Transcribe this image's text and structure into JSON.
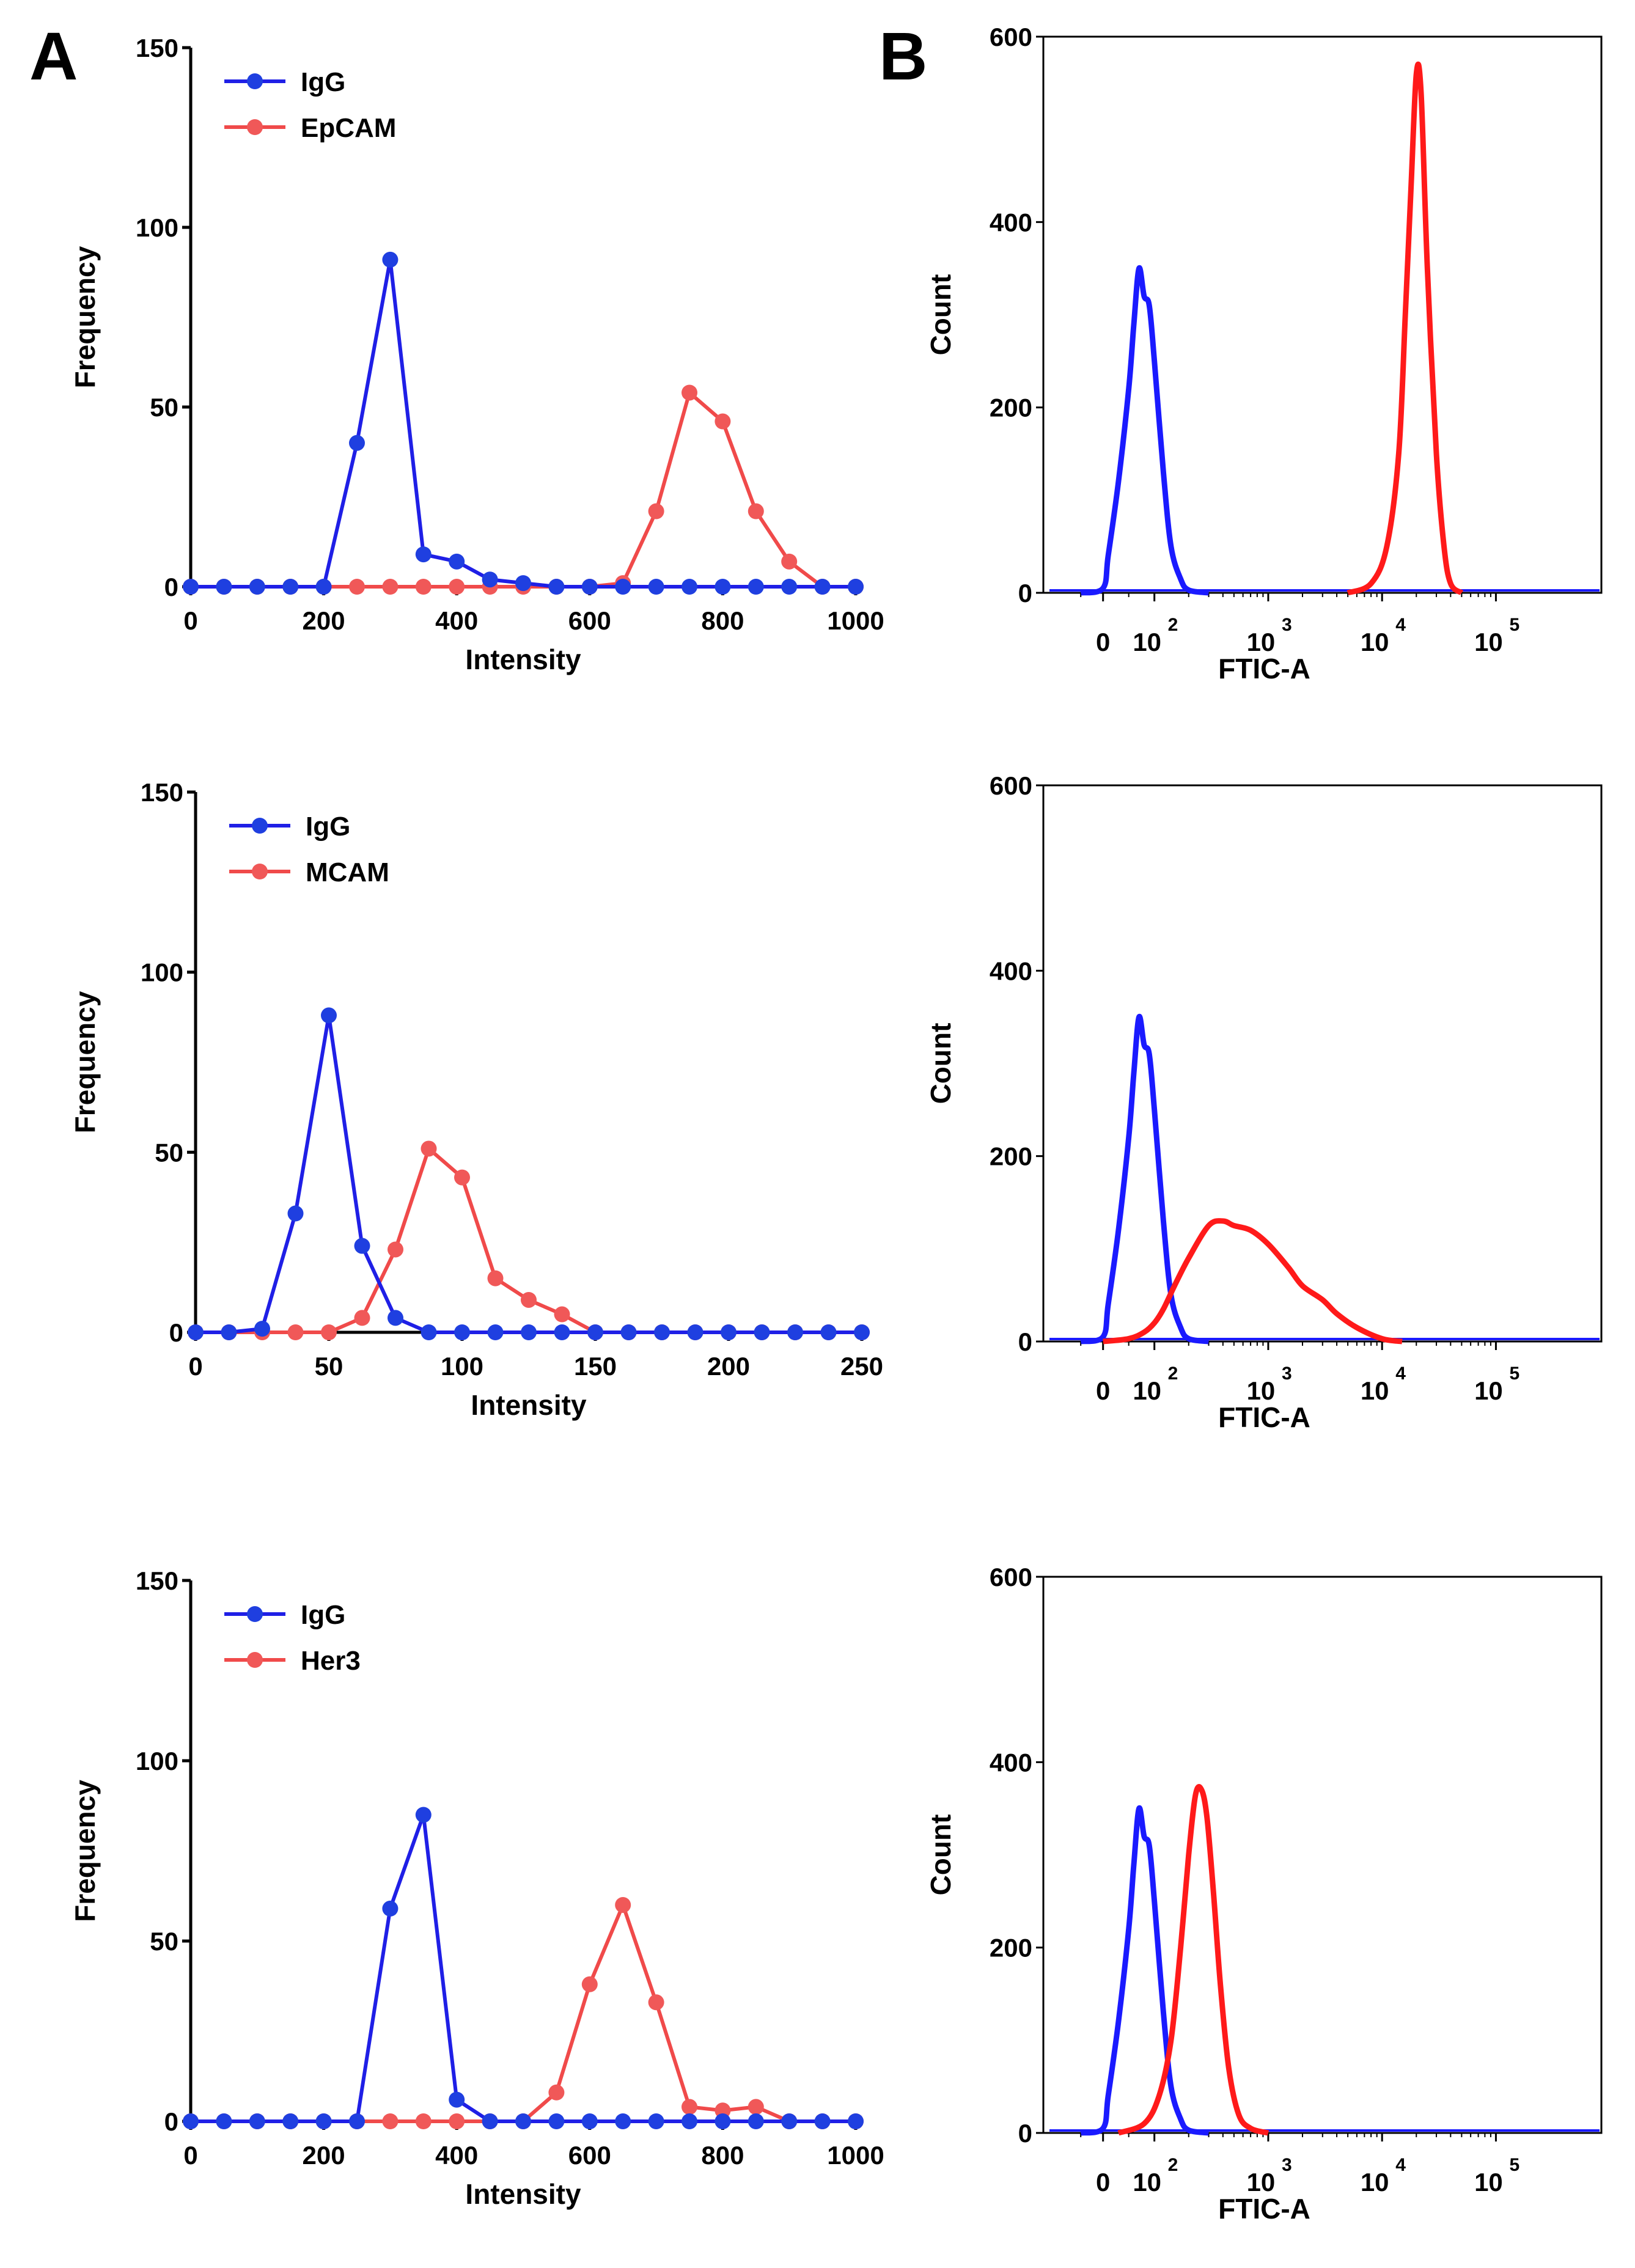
{
  "figure": {
    "panel_a_label": "A",
    "panel_b_label": "B"
  },
  "colors": {
    "igg_line": "#1f1fe6",
    "igg_marker": "#1f3fe0",
    "marker_line": "#f04a4a",
    "marker_dot": "#f05858",
    "facs_igg": "#1a1aff",
    "facs_marker": "#ff1a1a"
  },
  "chart_data": [
    {
      "id": "A1",
      "type": "line",
      "xlabel": "Intensity",
      "ylabel": "Frequency",
      "xlim": [
        0,
        1000
      ],
      "ylim": [
        0,
        150
      ],
      "xticks": [
        0,
        200,
        400,
        600,
        800,
        1000
      ],
      "yticks": [
        0,
        50,
        100,
        150
      ],
      "legend": "top-left",
      "series": [
        {
          "name": "IgG",
          "color": "#1f1fe6",
          "x": [
            0,
            50,
            100,
            150,
            200,
            250,
            300,
            350,
            400,
            450,
            500,
            550,
            600,
            650,
            700,
            750,
            800,
            850,
            900,
            950,
            1000
          ],
          "y": [
            0,
            0,
            0,
            0,
            0,
            40,
            91,
            9,
            7,
            2,
            1,
            0,
            0,
            0,
            0,
            0,
            0,
            0,
            0,
            0,
            0
          ]
        },
        {
          "name": "EpCAM",
          "color": "#f04a4a",
          "x": [
            0,
            50,
            100,
            150,
            200,
            250,
            300,
            350,
            400,
            450,
            500,
            550,
            600,
            650,
            700,
            750,
            800,
            850,
            900,
            950,
            1000
          ],
          "y": [
            0,
            0,
            0,
            0,
            0,
            0,
            0,
            0,
            0,
            0,
            0,
            0,
            0,
            1,
            21,
            54,
            46,
            21,
            7,
            0,
            0
          ]
        }
      ]
    },
    {
      "id": "A2",
      "type": "line",
      "xlabel": "Intensity",
      "ylabel": "Frequency",
      "xlim": [
        0,
        250
      ],
      "ylim": [
        0,
        150
      ],
      "xticks": [
        0,
        50,
        100,
        150,
        200,
        250
      ],
      "yticks": [
        0,
        50,
        100,
        150
      ],
      "legend": "top-left",
      "series": [
        {
          "name": "IgG",
          "color": "#1f1fe6",
          "x": [
            0,
            12.5,
            25,
            37.5,
            50,
            62.5,
            75,
            87.5,
            100,
            112.5,
            125,
            137.5,
            150,
            162.5,
            175,
            187.5,
            200,
            212.5,
            225,
            237.5,
            250
          ],
          "y": [
            0,
            0,
            1,
            33,
            88,
            24,
            4,
            0,
            0,
            0,
            0,
            0,
            0,
            0,
            0,
            0,
            0,
            0,
            0,
            0,
            0
          ]
        },
        {
          "name": "MCAM",
          "color": "#f04a4a",
          "x": [
            0,
            12.5,
            25,
            37.5,
            50,
            62.5,
            75,
            87.5,
            100,
            112.5,
            125,
            137.5,
            150,
            162.5,
            175,
            187.5,
            200,
            212.5,
            225,
            237.5,
            250
          ],
          "y": [
            0,
            0,
            0,
            0,
            0,
            4,
            23,
            51,
            43,
            15,
            9,
            5,
            0,
            0,
            0,
            0,
            0,
            0,
            0,
            0,
            0
          ]
        }
      ]
    },
    {
      "id": "A3",
      "type": "line",
      "xlabel": "Intensity",
      "ylabel": "Frequency",
      "xlim": [
        0,
        1000
      ],
      "ylim": [
        0,
        150
      ],
      "xticks": [
        0,
        200,
        400,
        600,
        800,
        1000
      ],
      "yticks": [
        0,
        50,
        100,
        150
      ],
      "legend": "top-left",
      "series": [
        {
          "name": "IgG",
          "color": "#1f1fe6",
          "x": [
            0,
            50,
            100,
            150,
            200,
            250,
            300,
            350,
            400,
            450,
            500,
            550,
            600,
            650,
            700,
            750,
            800,
            850,
            900,
            950,
            1000
          ],
          "y": [
            0,
            0,
            0,
            0,
            0,
            0,
            59,
            85,
            6,
            0,
            0,
            0,
            0,
            0,
            0,
            0,
            0,
            0,
            0,
            0,
            0
          ]
        },
        {
          "name": "Her3",
          "color": "#f04a4a",
          "x": [
            0,
            50,
            100,
            150,
            200,
            250,
            300,
            350,
            400,
            450,
            500,
            550,
            600,
            650,
            700,
            750,
            800,
            850,
            900,
            950,
            1000
          ],
          "y": [
            0,
            0,
            0,
            0,
            0,
            0,
            0,
            0,
            0,
            0,
            0,
            8,
            38,
            60,
            33,
            4,
            3,
            4,
            0,
            0,
            0
          ]
        }
      ]
    },
    {
      "id": "B1",
      "type": "area",
      "xlabel": "FTIC-A",
      "ylabel": "Count",
      "xscale": "biexponential",
      "ylim": [
        0,
        600
      ],
      "yticks": [
        0,
        200,
        400,
        600
      ],
      "xtick_labels": [
        "0",
        "10",
        "10",
        "10",
        "10"
      ],
      "xtick_exponents": [
        "",
        "2",
        "3",
        "4",
        "5"
      ],
      "series": [
        {
          "name": "IgG",
          "color": "#1a1aff",
          "x": [
            -50,
            0,
            10,
            30,
            50,
            60,
            70,
            80,
            90,
            100,
            120,
            140,
            170,
            200,
            300
          ],
          "y": [
            0,
            5,
            40,
            120,
            220,
            290,
            350,
            320,
            310,
            250,
            130,
            50,
            15,
            3,
            0
          ]
        },
        {
          "name": "EpCAM",
          "color": "#ff1a1a",
          "x": [
            5000,
            8000,
            11000,
            14000,
            16000,
            18000,
            20000,
            22000,
            25000,
            30000,
            35000,
            40000,
            50000
          ],
          "y": [
            0,
            10,
            50,
            150,
            300,
            440,
            560,
            540,
            350,
            150,
            50,
            10,
            0
          ]
        }
      ]
    },
    {
      "id": "B2",
      "type": "area",
      "xlabel": "FTIC-A",
      "ylabel": "Count",
      "xscale": "biexponential",
      "ylim": [
        0,
        600
      ],
      "yticks": [
        0,
        200,
        400,
        600
      ],
      "xtick_labels": [
        "0",
        "10",
        "10",
        "10",
        "10"
      ],
      "xtick_exponents": [
        "",
        "2",
        "3",
        "4",
        "5"
      ],
      "series": [
        {
          "name": "IgG",
          "color": "#1a1aff",
          "x": [
            -50,
            0,
            10,
            30,
            50,
            60,
            70,
            80,
            90,
            100,
            120,
            140,
            170,
            200,
            300
          ],
          "y": [
            0,
            5,
            40,
            120,
            220,
            290,
            350,
            320,
            310,
            250,
            130,
            50,
            15,
            3,
            0
          ]
        },
        {
          "name": "MCAM",
          "color": "#ff1a1a",
          "x": [
            0,
            50,
            80,
            100,
            120,
            150,
            200,
            300,
            400,
            500,
            700,
            1000,
            1500,
            2000,
            3000,
            4000,
            6000,
            10000,
            15000
          ],
          "y": [
            0,
            3,
            10,
            20,
            35,
            60,
            90,
            125,
            130,
            125,
            120,
            105,
            80,
            60,
            45,
            30,
            15,
            3,
            0
          ]
        }
      ]
    },
    {
      "id": "B3",
      "type": "area",
      "xlabel": "FTIC-A",
      "ylabel": "Count",
      "xscale": "biexponential",
      "ylim": [
        0,
        600
      ],
      "yticks": [
        0,
        200,
        400,
        600
      ],
      "xtick_labels": [
        "0",
        "10",
        "10",
        "10",
        "10"
      ],
      "xtick_exponents": [
        "",
        "2",
        "3",
        "4",
        "5"
      ],
      "series": [
        {
          "name": "IgG",
          "color": "#1a1aff",
          "x": [
            -50,
            0,
            10,
            30,
            50,
            60,
            70,
            80,
            90,
            100,
            120,
            140,
            170,
            200,
            300
          ],
          "y": [
            0,
            5,
            40,
            120,
            220,
            290,
            350,
            320,
            310,
            250,
            130,
            50,
            15,
            3,
            0
          ]
        },
        {
          "name": "Her3",
          "color": "#ff1a1a",
          "x": [
            30,
            80,
            110,
            140,
            170,
            200,
            230,
            260,
            290,
            330,
            380,
            450,
            550,
            700,
            1000
          ],
          "y": [
            0,
            10,
            40,
            100,
            200,
            300,
            365,
            370,
            340,
            260,
            160,
            70,
            20,
            5,
            0
          ]
        }
      ]
    }
  ]
}
